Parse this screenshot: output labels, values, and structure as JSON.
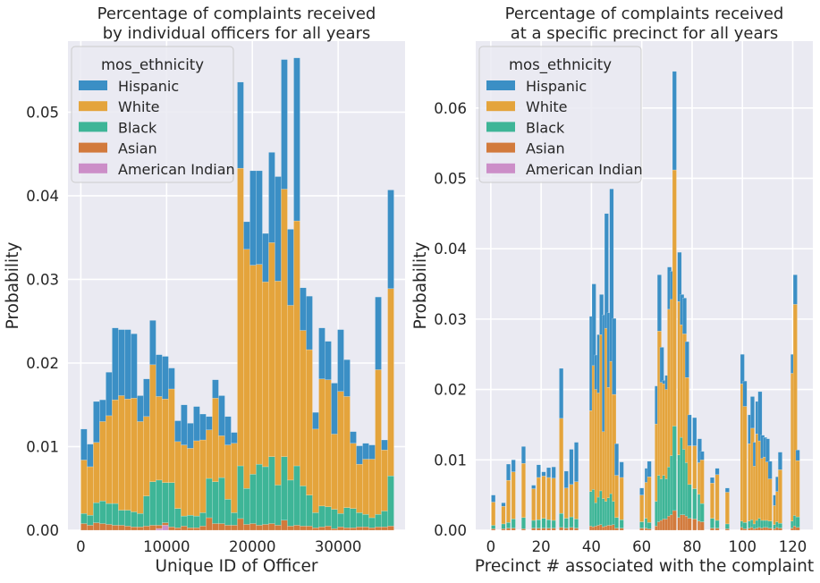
{
  "chart_data": [
    {
      "type": "bar",
      "stacked": true,
      "title": "Percentage of complaints received\nby individual officers for all years",
      "xlabel": "Unique ID of Officer",
      "ylabel": "Probability",
      "xlim": [
        -1500,
        37800
      ],
      "ylim": [
        0,
        0.0585
      ],
      "x_ticks": [
        0,
        10000,
        20000,
        30000
      ],
      "y_ticks": [
        0.0,
        0.01,
        0.02,
        0.03,
        0.04,
        0.05
      ],
      "y_tick_labels": [
        "0.00",
        "0.01",
        "0.02",
        "0.03",
        "0.04",
        "0.05"
      ],
      "grid": true,
      "legend": {
        "position": "top-left",
        "title": "mos_ethnicity"
      },
      "bin_width": 730,
      "x": [
        365,
        1095,
        1825,
        2555,
        3285,
        4015,
        4745,
        5475,
        6205,
        6935,
        7665,
        8395,
        9125,
        9855,
        10585,
        11315,
        12045,
        12775,
        13505,
        14235,
        14965,
        15695,
        16425,
        17155,
        17885,
        18615,
        19345,
        20075,
        20805,
        21535,
        22265,
        22995,
        23725,
        24455,
        25185,
        25915,
        26645,
        27375,
        28105,
        28835,
        29565,
        30295,
        31025,
        31755,
        32485,
        33215,
        33945,
        34675,
        35405,
        36135
      ],
      "series": [
        {
          "name": "American Indian",
          "color": "#cc8ec8",
          "values": [
            0,
            0,
            0,
            0,
            0,
            0,
            0,
            0,
            0,
            0,
            0,
            0,
            0.0002,
            0.0006,
            0,
            0,
            0,
            0,
            0,
            0,
            0,
            0,
            0,
            0,
            0,
            0,
            0,
            0,
            0,
            0,
            0,
            0,
            0,
            0,
            0,
            0,
            0,
            0,
            0,
            0,
            0,
            0,
            0,
            0,
            0,
            0,
            0,
            0,
            0,
            0
          ]
        },
        {
          "name": "Asian",
          "color": "#d27a3c",
          "values": [
            0.0008,
            0.0006,
            0.0009,
            0.0008,
            0.0007,
            0.0006,
            0.0006,
            0.0005,
            0.0004,
            0.0004,
            0.0005,
            0.0006,
            0.0004,
            0.0003,
            0.0004,
            0.0003,
            0.0005,
            0.0003,
            0.0003,
            0.0005,
            0.0015,
            0.0008,
            0.0008,
            0.0006,
            0.0006,
            0.0014,
            0.0007,
            0.0008,
            0.0006,
            0.0007,
            0.0008,
            0.0006,
            0.0012,
            0.0005,
            0.0006,
            0.0005,
            0.0005,
            0.0003,
            0.0004,
            0.0005,
            0.0002,
            0.0004,
            0.0003,
            0.0003,
            0.0004,
            0.0004,
            0.0003,
            0.0004,
            0.0004,
            0.0005
          ]
        },
        {
          "name": "Black",
          "color": "#3eb597",
          "values": [
            0.0012,
            0.0012,
            0.0024,
            0.0027,
            0.0025,
            0.0026,
            0.0018,
            0.0019,
            0.0018,
            0.0016,
            0.0036,
            0.0052,
            0.0054,
            0.0048,
            0.0053,
            0.0023,
            0.0012,
            0.0015,
            0.0014,
            0.0016,
            0.0047,
            0.005,
            0.0055,
            0.0031,
            0.0015,
            0.0063,
            0.0043,
            0.0059,
            0.0073,
            0.0069,
            0.008,
            0.0048,
            0.0076,
            0.0055,
            0.0071,
            0.0048,
            0.0037,
            0.0018,
            0.0025,
            0.0023,
            0.0023,
            0.0016,
            0.0024,
            0.0023,
            0.0017,
            0.0015,
            0.0012,
            0.0015,
            0.0019,
            0.006
          ]
        },
        {
          "name": "White",
          "color": "#e4a43c",
          "values": [
            0.0064,
            0.0058,
            0.0072,
            0.0095,
            0.0105,
            0.0124,
            0.0137,
            0.0133,
            0.0136,
            0.011,
            0.0095,
            0.014,
            0.01,
            0.01,
            0.0112,
            0.008,
            0.0085,
            0.008,
            0.009,
            0.0087,
            0.0058,
            0.01,
            0.005,
            0.0065,
            0.0083,
            0.0356,
            0.0286,
            0.025,
            0.0239,
            0.0221,
            0.0256,
            0.0244,
            0.032,
            0.0209,
            0.0293,
            0.0186,
            0.0174,
            0.01,
            0.0152,
            0.0152,
            0.009,
            0.0146,
            0.0133,
            0.0078,
            0.0058,
            0.0066,
            0.007,
            0.0173,
            0.0073,
            0.0224
          ]
        },
        {
          "name": "Hispanic",
          "color": "#3b8fc5",
          "values": [
            0.0037,
            0.0027,
            0.0049,
            0.0026,
            0.0052,
            0.0086,
            0.0079,
            0.0083,
            0.0077,
            0.0031,
            0.0045,
            0.0053,
            0.005,
            0.0051,
            0.0025,
            0.0025,
            0.0048,
            0.003,
            0.0041,
            0.0031,
            0.0016,
            0.0022,
            0.0048,
            0.0034,
            0.0013,
            0.0103,
            0.0033,
            0.0113,
            0.0112,
            0.0058,
            0.0108,
            0.0125,
            0.0155,
            0.0091,
            0.0195,
            0.0051,
            0.0064,
            0.002,
            0.0061,
            0.0046,
            0.0061,
            0.0074,
            0.0044,
            0.0014,
            0.0022,
            0.0019,
            0.0017,
            0.0087,
            0.0012,
            0.0118
          ]
        }
      ]
    },
    {
      "type": "bar",
      "stacked": true,
      "title": "Percentage of complaints received\nat a specific precinct for all years",
      "xlabel": "Precinct # associated with the complaint",
      "ylabel": "Probability",
      "xlim": [
        -6,
        128
      ],
      "ylim": [
        0,
        0.0695
      ],
      "x_ticks": [
        0,
        20,
        40,
        60,
        80,
        100,
        120
      ],
      "y_ticks": [
        0.0,
        0.01,
        0.02,
        0.03,
        0.04,
        0.05,
        0.06
      ],
      "y_tick_labels": [
        "0.00",
        "0.01",
        "0.02",
        "0.03",
        "0.04",
        "0.05",
        "0.06"
      ],
      "grid": true,
      "legend": {
        "position": "top-left",
        "title": "mos_ethnicity"
      },
      "bin_width": 1.6,
      "x": [
        1,
        5,
        7,
        9,
        13,
        17,
        19,
        21,
        23,
        25,
        28,
        30,
        32,
        34,
        40,
        41,
        42,
        43,
        44,
        45,
        46,
        47,
        48,
        49,
        50,
        52,
        60,
        62,
        63,
        66,
        67,
        68,
        69,
        70,
        71,
        72,
        73,
        75,
        76,
        77,
        78,
        79,
        81,
        83,
        84,
        88,
        90,
        94,
        100,
        101,
        103,
        104,
        105,
        106,
        107,
        108,
        109,
        110,
        111,
        113,
        114,
        115,
        120,
        121,
        122
      ],
      "series": [
        {
          "name": "American Indian",
          "color": "#cc8ec8",
          "values": [
            0,
            0,
            0,
            0,
            0,
            0,
            0,
            0,
            0,
            0,
            0,
            0,
            0,
            0,
            0,
            0,
            0,
            0,
            0,
            0,
            0,
            0,
            0,
            0,
            0,
            0,
            0,
            0,
            0,
            0,
            0,
            0,
            0,
            0,
            0,
            0,
            0,
            0,
            0,
            0,
            0,
            0,
            0,
            0,
            0,
            0,
            0,
            0,
            0,
            0,
            0,
            0,
            0,
            0,
            0,
            0,
            0,
            0,
            0,
            0,
            0,
            0,
            0,
            0,
            0
          ]
        },
        {
          "name": "Asian",
          "color": "#d27a3c",
          "values": [
            0.0002,
            0.0002,
            0.0003,
            0.0003,
            0.0002,
            0.0003,
            0.0003,
            0.0003,
            0.0003,
            0.0003,
            0.0004,
            0.0003,
            0.0004,
            0.0003,
            0.0006,
            0.0005,
            0.0006,
            0.0007,
            0.0008,
            0.0005,
            0.0006,
            0.0007,
            0.0007,
            0.0008,
            0.0003,
            0.0003,
            0.0003,
            0.0003,
            0.0002,
            0.0006,
            0.0012,
            0.0014,
            0.0016,
            0.0016,
            0.002,
            0.0022,
            0.0028,
            0.0018,
            0.0022,
            0.0022,
            0.002,
            0.0017,
            0.0016,
            0.0013,
            0.0012,
            0.0003,
            0.0003,
            0.0002,
            0.0004,
            0.0002,
            0.0003,
            0.0004,
            0.0002,
            0.0003,
            0.0004,
            0.0003,
            0.0004,
            0.0004,
            0.0003,
            0.0002,
            0.0004,
            0.0003,
            0.0003,
            0.0006,
            0.0004
          ]
        },
        {
          "name": "Black",
          "color": "#3eb597",
          "values": [
            0.0005,
            0.0007,
            0.0008,
            0.0013,
            0.0016,
            0.0011,
            0.0012,
            0.0014,
            0.0012,
            0.0011,
            0.002,
            0.0014,
            0.0015,
            0.0013,
            0.0049,
            0.0053,
            0.0033,
            0.004,
            0.0048,
            0.004,
            0.0035,
            0.0039,
            0.0045,
            0.0033,
            0.0015,
            0.0012,
            0.0009,
            0.0014,
            0.0009,
            0.0035,
            0.0066,
            0.0059,
            0.0062,
            0.0057,
            0.007,
            0.0084,
            0.012,
            0.0089,
            0.011,
            0.0093,
            0.0076,
            0.0048,
            0.0043,
            0.0038,
            0.0026,
            0.0014,
            0.0011,
            0.0007,
            0.0009,
            0.0009,
            0.001,
            0.0011,
            0.0007,
            0.0011,
            0.0013,
            0.0011,
            0.001,
            0.001,
            0.001,
            0.0006,
            0.0008,
            0.0007,
            0.001,
            0.0015,
            0.0015
          ]
        },
        {
          "name": "White",
          "color": "#e4a43c",
          "values": [
            0.0033,
            0.0025,
            0.006,
            0.0067,
            0.0077,
            0.0045,
            0.006,
            0.006,
            0.006,
            0.006,
            0.0135,
            0.0043,
            0.0046,
            0.0053,
            0.0115,
            0.0176,
            0.0161,
            0.0148,
            0.0222,
            0.0095,
            0.0246,
            0.0157,
            0.0188,
            0.0152,
            0.006,
            0.006,
            0.0038,
            0.0051,
            0.0065,
            0.011,
            0.0205,
            0.0137,
            0.013,
            0.0127,
            0.0224,
            0.0222,
            0.0364,
            0.0218,
            0.016,
            0.0164,
            0.0121,
            0.0055,
            0.0061,
            0.0045,
            0.0062,
            0.005,
            0.0065,
            0.0045,
            0.0195,
            0.0165,
            0.011,
            0.013,
            0.0082,
            0.0123,
            0.011,
            0.0088,
            0.009,
            0.0083,
            0.006,
            0.0027,
            0.0043,
            0.0076,
            0.021,
            0.03,
            0.008
          ]
        },
        {
          "name": "Hispanic",
          "color": "#3b8fc5",
          "values": [
            0.001,
            0.0005,
            0.0023,
            0.0017,
            0.0024,
            0.0005,
            0.0018,
            0.0006,
            0.0014,
            0.0016,
            0.0071,
            0.0024,
            0.005,
            0.0056,
            0.0134,
            0.0116,
            0.0049,
            0.0083,
            0.0057,
            0.0166,
            0.0163,
            0.0106,
            0.0245,
            0.0108,
            0.0045,
            0.0022,
            0.001,
            0.002,
            0.0022,
            0.0054,
            0.008,
            0.005,
            0.0005,
            0.002,
            0.006,
            0.004,
            0.014,
            0.007,
            0.0043,
            0.0051,
            0.0051,
            0.0044,
            0.004,
            0.0034,
            0.0012,
            0.0008,
            0.0009,
            0.0006,
            0.0042,
            0.0036,
            0.0041,
            0.0045,
            0.0034,
            0.0046,
            0.007,
            0.0033,
            0.0028,
            0.0033,
            0.0025,
            0.0015,
            0.0021,
            0.0025,
            0.0027,
            0.0042,
            0.0015
          ]
        }
      ]
    }
  ],
  "legend_order": [
    "Hispanic",
    "White",
    "Black",
    "Asian",
    "American Indian"
  ],
  "style": {
    "plot_background": "#eaeaf2",
    "grid_color": "#ffffff",
    "text_color": "#262626"
  }
}
